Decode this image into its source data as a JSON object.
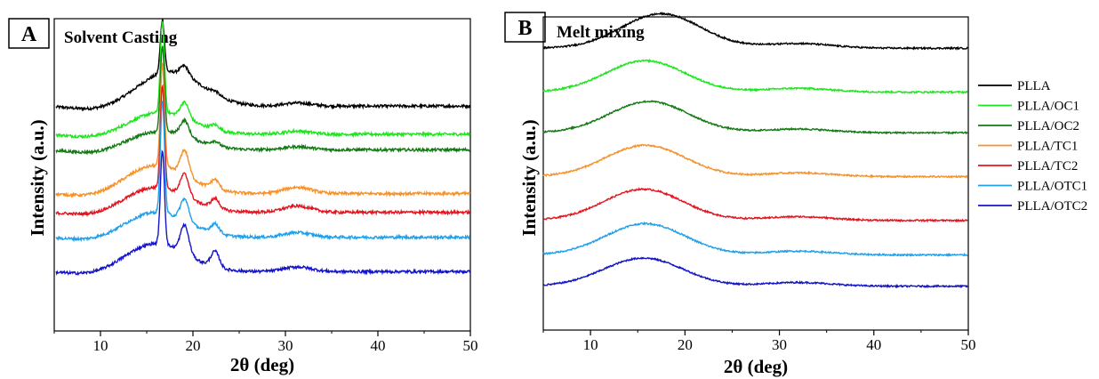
{
  "colors": {
    "PLLA": "#000000",
    "PLLA/OC1": "#1ee61e",
    "PLLA/OC2": "#127a12",
    "PLLA/TC1": "#f7922a",
    "PLLA/TC2": "#e6141e",
    "PLLA/OTC1": "#1ea0ea",
    "PLLA/OTC2": "#1414c8"
  },
  "legend": {
    "entries": [
      "PLLA",
      "PLLA/OC1",
      "PLLA/OC2",
      "PLLA/TC1",
      "PLLA/TC2",
      "PLLA/OTC1",
      "PLLA/OTC2"
    ]
  },
  "chart_data": [
    {
      "panel": "A",
      "type": "line",
      "title": "Solvent Casting",
      "xlabel": "2θ (deg)",
      "ylabel": "Intensity (a.u.)",
      "xlim": [
        5,
        50
      ],
      "xticks": [
        10,
        20,
        30,
        40,
        50
      ],
      "yticks": "none",
      "grid": false,
      "pattern": "semicrystalline: broad amorphous halo with sharp crystalline peaks near 16.7°, 19.1° and 22.4°, weak reflection near 31°",
      "series": [
        {
          "name": "PLLA",
          "baseline": 0.72,
          "halo_center": 17.5,
          "halo_height": 0.11,
          "peaks": [
            [
              16.7,
              0.17
            ],
            [
              19.1,
              0.03
            ],
            [
              22.4,
              0.01
            ],
            [
              31.3,
              0.01
            ]
          ]
        },
        {
          "name": "PLLA/OC1",
          "baseline": 0.63,
          "halo_center": 16.5,
          "halo_height": 0.07,
          "peaks": [
            [
              16.7,
              0.29
            ],
            [
              19.1,
              0.05
            ],
            [
              22.4,
              0.015
            ],
            [
              31.3,
              0.01
            ]
          ]
        },
        {
          "name": "PLLA/OC2",
          "baseline": 0.58,
          "halo_center": 16.5,
          "halo_height": 0.06,
          "peaks": [
            [
              16.7,
              0.27
            ],
            [
              19.1,
              0.05
            ],
            [
              22.4,
              0.015
            ],
            [
              31.3,
              0.01
            ]
          ]
        },
        {
          "name": "PLLA/TC1",
          "baseline": 0.44,
          "halo_center": 16.0,
          "halo_height": 0.09,
          "peaks": [
            [
              16.7,
              0.33
            ],
            [
              19.1,
              0.08
            ],
            [
              22.4,
              0.03
            ],
            [
              31.3,
              0.02
            ]
          ]
        },
        {
          "name": "PLLA/TC2",
          "baseline": 0.38,
          "halo_center": 16.0,
          "halo_height": 0.08,
          "peaks": [
            [
              16.7,
              0.33
            ],
            [
              19.1,
              0.07
            ],
            [
              22.4,
              0.03
            ],
            [
              31.3,
              0.02
            ]
          ]
        },
        {
          "name": "PLLA/OTC1",
          "baseline": 0.3,
          "halo_center": 16.0,
          "halo_height": 0.08,
          "peaks": [
            [
              16.7,
              0.36
            ],
            [
              19.1,
              0.07
            ],
            [
              22.4,
              0.03
            ],
            [
              31.3,
              0.015
            ]
          ]
        },
        {
          "name": "PLLA/OTC2",
          "baseline": 0.19,
          "halo_center": 16.0,
          "halo_height": 0.09,
          "peaks": [
            [
              16.7,
              0.3
            ],
            [
              19.1,
              0.09
            ],
            [
              22.4,
              0.05
            ],
            [
              31.3,
              0.015
            ]
          ]
        }
      ]
    },
    {
      "panel": "B",
      "type": "line",
      "title": "Melt mixing",
      "xlabel": "2θ (deg)",
      "ylabel": "Intensity (a.u.)",
      "xlim": [
        5,
        50
      ],
      "xticks": [
        10,
        20,
        30,
        40,
        50
      ],
      "yticks": "none",
      "grid": false,
      "pattern": "amorphous: single broad halo centred near 16–18°, weak hump near 32°",
      "series": [
        {
          "name": "PLLA",
          "baseline": 0.9,
          "halo_center": 17.5,
          "halo_height": 0.11,
          "hump": 0.015
        },
        {
          "name": "PLLA/OC1",
          "baseline": 0.76,
          "halo_center": 15.8,
          "halo_height": 0.1,
          "hump": 0.012
        },
        {
          "name": "PLLA/OC2",
          "baseline": 0.63,
          "halo_center": 16.2,
          "halo_height": 0.1,
          "hump": 0.012
        },
        {
          "name": "PLLA/TC1",
          "baseline": 0.49,
          "halo_center": 15.8,
          "halo_height": 0.1,
          "hump": 0.012
        },
        {
          "name": "PLLA/TC2",
          "baseline": 0.35,
          "halo_center": 15.6,
          "halo_height": 0.1,
          "hump": 0.012
        },
        {
          "name": "PLLA/OTC1",
          "baseline": 0.24,
          "halo_center": 15.8,
          "halo_height": 0.1,
          "hump": 0.012
        },
        {
          "name": "PLLA/OTC2",
          "baseline": 0.14,
          "halo_center": 15.6,
          "halo_height": 0.09,
          "hump": 0.012
        }
      ]
    }
  ]
}
